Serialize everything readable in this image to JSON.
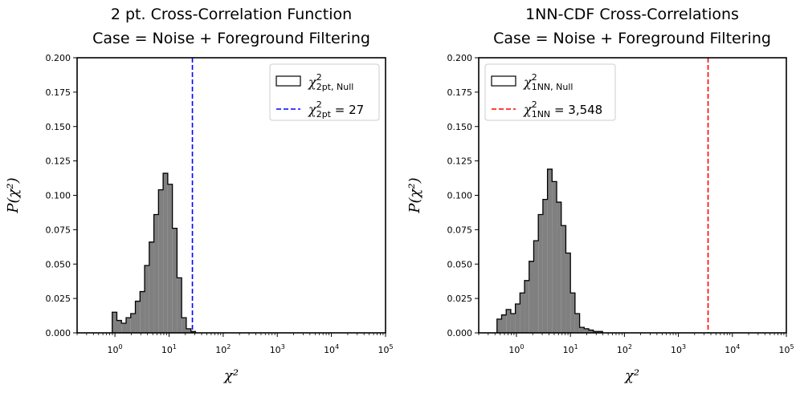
{
  "chart_data": [
    {
      "type": "histogram",
      "title_line1": "2 pt. Cross-Correlation Function",
      "title_line2": "Case = Noise + Foreground Filtering",
      "xlabel": "χ²",
      "ylabel": "P(χ²)",
      "xscale": "log",
      "xlim": [
        0.2,
        100000
      ],
      "ylim": [
        0,
        0.2
      ],
      "yticks": [
        "0.000",
        "0.025",
        "0.050",
        "0.075",
        "0.100",
        "0.125",
        "0.150",
        "0.175",
        "0.200"
      ],
      "xticks": [
        {
          "base": "10",
          "exp": "0"
        },
        {
          "base": "10",
          "exp": "1"
        },
        {
          "base": "10",
          "exp": "2"
        },
        {
          "base": "10",
          "exp": "3"
        },
        {
          "base": "10",
          "exp": "4"
        },
        {
          "base": "10",
          "exp": "5"
        }
      ],
      "hist_bins_log10_start": -0.05,
      "hist_bin_width_log10": 0.0855,
      "hist_values": [
        0.015,
        0.009,
        0.007,
        0.011,
        0.014,
        0.023,
        0.03,
        0.049,
        0.066,
        0.086,
        0.104,
        0.116,
        0.108,
        0.076,
        0.04,
        0.011,
        0.003,
        0.001
      ],
      "hist_color": "#808080",
      "vline": {
        "x": 27,
        "color": "#0000ff",
        "style": "dashed"
      },
      "legend_position": "top-right",
      "legend": [
        {
          "symbol": "χ",
          "sup": "2",
          "sub": "2pt, Null",
          "suffix": "",
          "kind": "patch"
        },
        {
          "symbol": "χ",
          "sup": "2",
          "sub": "2pt",
          "suffix": " = 27",
          "kind": "line",
          "color": "#0000ff"
        }
      ]
    },
    {
      "type": "histogram",
      "title_line1": "1NN-CDF Cross-Correlations",
      "title_line2": "Case = Noise + Foreground Filtering",
      "xlabel": "χ²",
      "ylabel": "P(χ²)",
      "xscale": "log",
      "xlim": [
        0.2,
        100000
      ],
      "ylim": [
        0,
        0.2
      ],
      "yticks": [
        "0.000",
        "0.025",
        "0.050",
        "0.075",
        "0.100",
        "0.125",
        "0.150",
        "0.175",
        "0.200"
      ],
      "xticks": [
        {
          "base": "10",
          "exp": "0"
        },
        {
          "base": "10",
          "exp": "1"
        },
        {
          "base": "10",
          "exp": "2"
        },
        {
          "base": "10",
          "exp": "3"
        },
        {
          "base": "10",
          "exp": "4"
        },
        {
          "base": "10",
          "exp": "5"
        }
      ],
      "hist_bins_log10_start": -0.36,
      "hist_bin_width_log10": 0.085,
      "hist_values": [
        0.01,
        0.013,
        0.017,
        0.014,
        0.021,
        0.029,
        0.038,
        0.052,
        0.067,
        0.086,
        0.097,
        0.119,
        0.11,
        0.095,
        0.078,
        0.058,
        0.029,
        0.014,
        0.004,
        0.003,
        0.002,
        0.001,
        0.001
      ],
      "hist_color": "#808080",
      "vline": {
        "x": 3548,
        "color": "#ff0000",
        "style": "dashed"
      },
      "legend_position": "top-left",
      "legend": [
        {
          "symbol": "χ",
          "sup": "2",
          "sub": "1NN, Null",
          "suffix": "",
          "kind": "patch"
        },
        {
          "symbol": "χ",
          "sup": "2",
          "sub": "1NN",
          "suffix": "  = 3,548",
          "kind": "line",
          "color": "#ff0000"
        }
      ]
    }
  ]
}
